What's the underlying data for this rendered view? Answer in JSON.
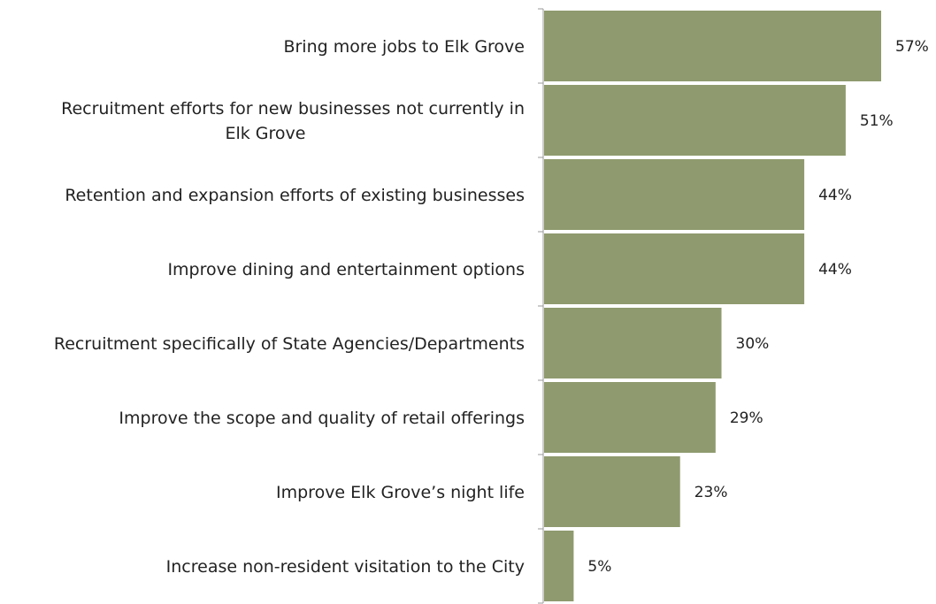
{
  "chart_data": {
    "type": "bar",
    "orientation": "horizontal",
    "categories": [
      "Bring more jobs to Elk Grove",
      "Recruitment efforts for new businesses not currently in Elk Grove",
      "Retention and expansion efforts of existing businesses",
      "Improve dining and entertainment options",
      "Recruitment specifically of State Agencies/Departments",
      "Improve the scope and quality of retail offerings",
      "Improve Elk Grove’s night life",
      "Increase non-resident visitation to the City"
    ],
    "category_lines": [
      [
        "Bring more jobs to Elk Grove"
      ],
      [
        "Recruitment efforts for new businesses not currently in",
        "Elk Grove"
      ],
      [
        "Retention and expansion efforts of existing businesses"
      ],
      [
        "Improve dining and entertainment options"
      ],
      [
        "Recruitment specifically of State Agencies/Departments"
      ],
      [
        "Improve the scope and quality of retail offerings"
      ],
      [
        "Improve Elk Grove’s night life"
      ],
      [
        "Increase non-resident visitation to the City"
      ]
    ],
    "values": [
      57,
      51,
      44,
      44,
      30,
      29,
      23,
      5
    ],
    "value_labels": [
      "57%",
      "51%",
      "44%",
      "44%",
      "30%",
      "29%",
      "23%",
      "5%"
    ],
    "xlim": [
      0,
      60
    ],
    "grid": false,
    "legend": "none",
    "bar_color": "#8f9a6e",
    "axis_color": "#9a9a9a",
    "text_color": "#222222"
  }
}
